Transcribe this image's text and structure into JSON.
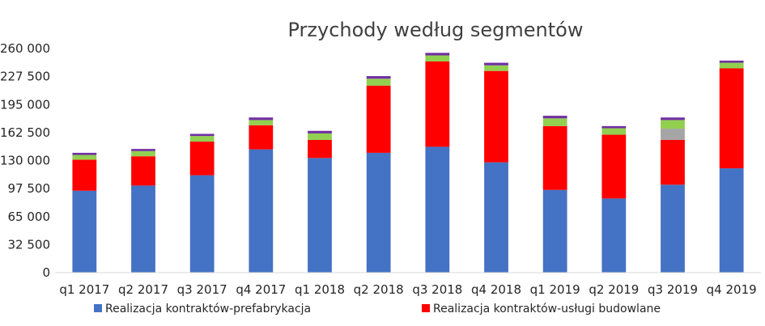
{
  "chart_data": {
    "type": "bar",
    "stacked": true,
    "title": "Przychody według segmentów",
    "xlabel": "",
    "ylabel": "",
    "ylim": [
      0,
      260000
    ],
    "y_ticks": [
      0,
      32500,
      65000,
      97500,
      130000,
      162500,
      195000,
      227500,
      260000
    ],
    "y_tick_labels": [
      "0",
      "32 500",
      "65 000",
      "97 500",
      "130 000",
      "162 500",
      "195 000",
      "227 500",
      "260 000"
    ],
    "grid": false,
    "legend_position": "bottom",
    "categories": [
      "q1 2017",
      "q2 2017",
      "q3 2017",
      "q4 2017",
      "q1 2018",
      "q2 2018",
      "q3 2018",
      "q4 2018",
      "q1 2019",
      "q2 2019",
      "q3 2019",
      "q4 2019"
    ],
    "series": [
      {
        "name": "Realizacja kontraktów-prefabrykacja",
        "color": "#4472C4",
        "values": [
          95000,
          101000,
          113000,
          143000,
          133000,
          139000,
          146000,
          128000,
          96000,
          86000,
          102000,
          121000
        ]
      },
      {
        "name": "Realizacja kontraktów-usługi budowlane",
        "color": "#FF0000",
        "values": [
          36000,
          34000,
          39000,
          28000,
          21000,
          78000,
          99000,
          106000,
          74000,
          74000,
          52000,
          116000
        ]
      },
      {
        "name": "",
        "color": "#A5A5A5",
        "values": [
          0,
          0,
          0,
          0,
          0,
          0,
          0,
          0,
          0,
          0,
          13000,
          0
        ]
      },
      {
        "name": "",
        "color": "#92D050",
        "values": [
          5500,
          6000,
          6500,
          6000,
          7500,
          8000,
          7000,
          6500,
          9000,
          7500,
          10000,
          6500
        ]
      },
      {
        "name": "",
        "color": "#7030A0",
        "values": [
          2500,
          2500,
          2500,
          3000,
          3000,
          3000,
          3000,
          3000,
          3000,
          2500,
          3000,
          2500
        ]
      }
    ]
  }
}
